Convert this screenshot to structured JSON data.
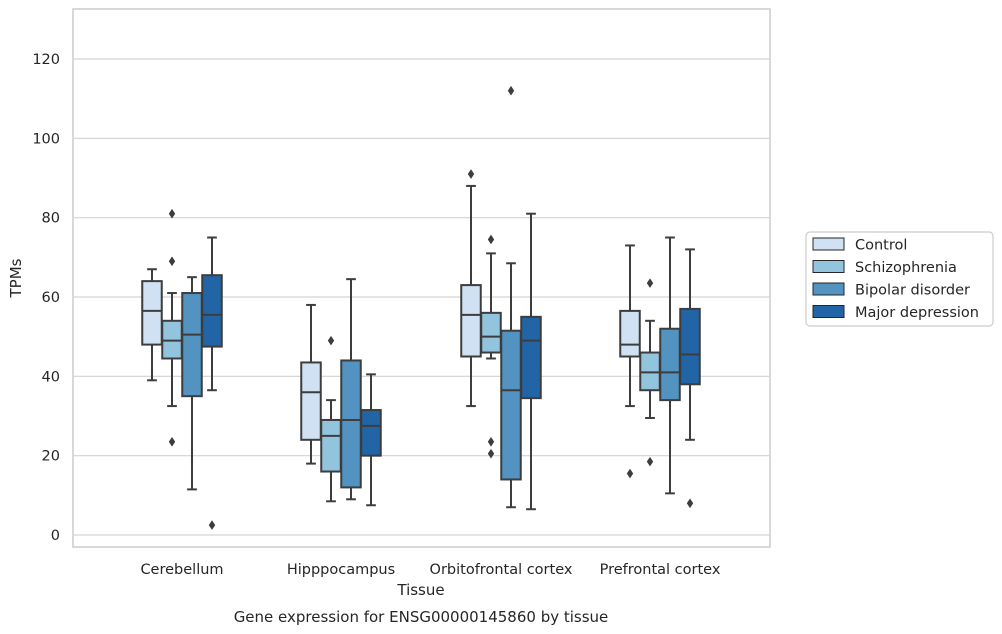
{
  "chart_data": {
    "type": "boxplot",
    "title": "Gene expression for ENSG00000145860 by tissue",
    "xlabel": "Tissue",
    "ylabel": "TPMs",
    "ylim": [
      -3,
      133
    ],
    "yticks": [
      0,
      20,
      40,
      60,
      80,
      100,
      120
    ],
    "grid": "horizontal",
    "legend_position": "right",
    "categories": [
      "Cerebellum",
      "Hipppocampus",
      "Orbitofrontal cortex",
      "Prefrontal cortex"
    ],
    "series": [
      {
        "name": "Control",
        "color": "#cfe1f2",
        "boxes": [
          {
            "whisker_low": 39,
            "q1": 48,
            "median": 56.5,
            "q3": 64,
            "whisker_high": 67,
            "outliers": []
          },
          {
            "whisker_low": 18,
            "q1": 24,
            "median": 36,
            "q3": 43.5,
            "whisker_high": 58,
            "outliers": []
          },
          {
            "whisker_low": 32.5,
            "q1": 45,
            "median": 55.5,
            "q3": 63,
            "whisker_high": 88,
            "outliers": [
              91
            ]
          },
          {
            "whisker_low": 32.5,
            "q1": 45,
            "median": 48,
            "q3": 56.5,
            "whisker_high": 73,
            "outliers": [
              15.5
            ]
          }
        ]
      },
      {
        "name": "Schizophrenia",
        "color": "#93c4de",
        "boxes": [
          {
            "whisker_low": 32.5,
            "q1": 44.5,
            "median": 49,
            "q3": 54,
            "whisker_high": 61,
            "outliers": [
              81,
              69,
              23.5
            ]
          },
          {
            "whisker_low": 8.5,
            "q1": 16,
            "median": 25,
            "q3": 29,
            "whisker_high": 34,
            "outliers": [
              49
            ]
          },
          {
            "whisker_low": 44.5,
            "q1": 46,
            "median": 50,
            "q3": 56,
            "whisker_high": 71,
            "outliers": [
              74.5,
              23.5,
              20.5
            ]
          },
          {
            "whisker_low": 29.5,
            "q1": 36.5,
            "median": 41,
            "q3": 46,
            "whisker_high": 54,
            "outliers": [
              63.5,
              18.5
            ]
          }
        ]
      },
      {
        "name": "Bipolar disorder",
        "color": "#5293c1",
        "boxes": [
          {
            "whisker_low": 11.5,
            "q1": 35,
            "median": 50.5,
            "q3": 61,
            "whisker_high": 65,
            "outliers": []
          },
          {
            "whisker_low": 9,
            "q1": 12,
            "median": 29,
            "q3": 44,
            "whisker_high": 64.5,
            "outliers": []
          },
          {
            "whisker_low": 7,
            "q1": 14,
            "median": 36.5,
            "q3": 51.5,
            "whisker_high": 68.5,
            "outliers": [
              112
            ]
          },
          {
            "whisker_low": 10.5,
            "q1": 34,
            "median": 41,
            "q3": 52,
            "whisker_high": 75,
            "outliers": []
          }
        ]
      },
      {
        "name": "Major depression",
        "color": "#2265a6",
        "boxes": [
          {
            "whisker_low": 36.5,
            "q1": 47.5,
            "median": 55.5,
            "q3": 65.5,
            "whisker_high": 75,
            "outliers": [
              2.5
            ]
          },
          {
            "whisker_low": 7.5,
            "q1": 20,
            "median": 27.5,
            "q3": 31.5,
            "whisker_high": 40.5,
            "outliers": []
          },
          {
            "whisker_low": 6.5,
            "q1": 34.5,
            "median": 49,
            "q3": 55,
            "whisker_high": 81,
            "outliers": []
          },
          {
            "whisker_low": 24,
            "q1": 38,
            "median": 45.5,
            "q3": 57,
            "whisker_high": 72,
            "outliers": [
              8
            ]
          }
        ]
      }
    ]
  }
}
